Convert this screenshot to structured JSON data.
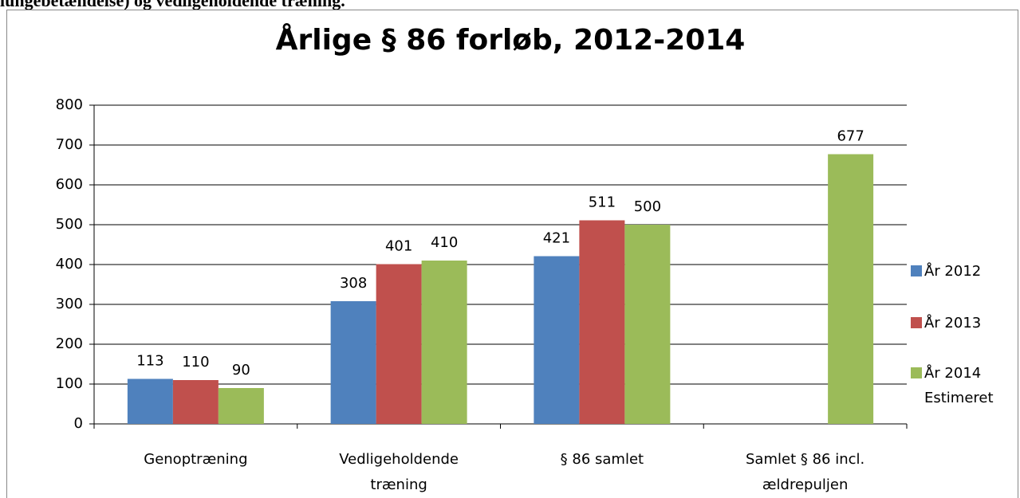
{
  "header_text": "lungebetændelse) og vedligeholdende træning.",
  "chart_data": {
    "type": "bar",
    "title": "Årlige § 86 forløb, 2012-2014",
    "categories": [
      "Genoptræning",
      "Vedligeholdende træning",
      "§ 86 samlet",
      "Samlet § 86 incl. ældrepuljen"
    ],
    "series": [
      {
        "name": "År 2012",
        "color": "#4f81bd",
        "values": [
          113,
          308,
          421,
          null
        ]
      },
      {
        "name": "År 2013",
        "color": "#c0504d",
        "values": [
          110,
          401,
          511,
          null
        ]
      },
      {
        "name": "År 2014 Estimeret",
        "color": "#9bbb59",
        "values": [
          90,
          410,
          500,
          677
        ]
      }
    ],
    "ylim": [
      0,
      800
    ],
    "yticks": [
      0,
      100,
      200,
      300,
      400,
      500,
      600,
      700,
      800
    ],
    "grid": true,
    "legend": "right"
  }
}
